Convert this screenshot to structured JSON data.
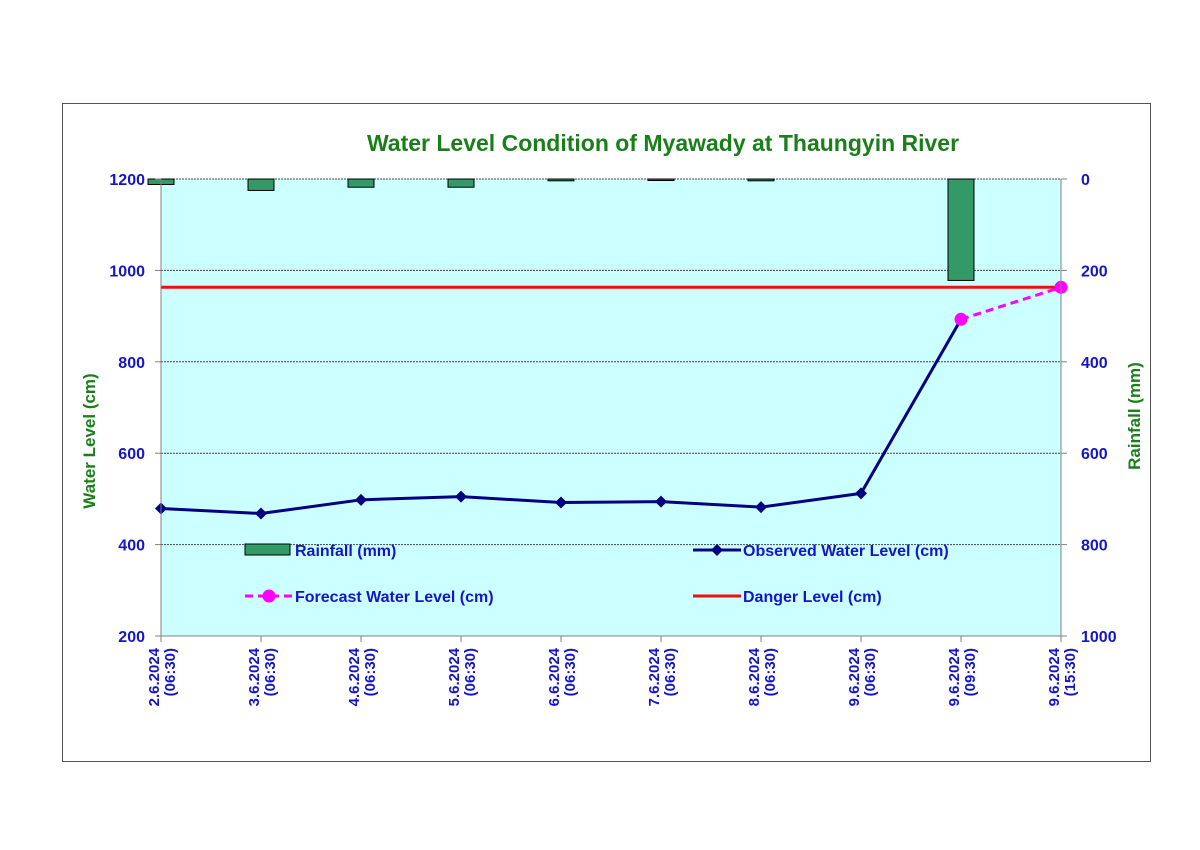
{
  "colors": {
    "title": "#1a7f1a",
    "axis_text": "#1515c8",
    "rain_axis_text": "#1a7f1a",
    "plot_bg": "#ccffff",
    "grid": "#444444",
    "rain_fill": "#339966",
    "observed": "#000080",
    "forecast": "#ff00ff",
    "danger": "#ee1111"
  },
  "chart_data": {
    "type": "line",
    "title": "Water Level Condition of  Myawady at Thaungyin River",
    "ylabel": "Water Level (cm)",
    "y2label": "Rainfall (mm)",
    "ylim": [
      200,
      1200
    ],
    "yticks": [
      200,
      400,
      600,
      800,
      1000,
      1200
    ],
    "y2lim": [
      0,
      1000
    ],
    "y2ticks": [
      0,
      200,
      400,
      600,
      800,
      1000
    ],
    "y2_inverted": true,
    "grid": true,
    "categories": [
      [
        "2.6.2024",
        "(06:30)"
      ],
      [
        "3.6.2024",
        "(06:30)"
      ],
      [
        "4.6.2024",
        "(06:30)"
      ],
      [
        "5.6.2024",
        "(06:30)"
      ],
      [
        "6.6.2024",
        "(06:30)"
      ],
      [
        "7.6.2024",
        "(06:30)"
      ],
      [
        "8.6.2024",
        "(06:30)"
      ],
      [
        "9.6.2024",
        "(06:30)"
      ],
      [
        "9.6.2024",
        "(09:30)"
      ],
      [
        "9.6.2024",
        "(15:30)"
      ]
    ],
    "series": [
      {
        "name": "Rainfall (mm)",
        "kind": "bar",
        "axis": "right",
        "values": [
          12,
          25,
          18,
          18,
          4,
          2,
          4,
          null,
          222,
          null
        ]
      },
      {
        "name": "Observed Water Level (cm)",
        "kind": "line",
        "axis": "left",
        "values": [
          479,
          468,
          498,
          505,
          492,
          494,
          482,
          512,
          null,
          null
        ]
      },
      {
        "name": "Forecast Water Level (cm)",
        "kind": "dashed-line",
        "axis": "left",
        "values": [
          null,
          null,
          null,
          null,
          null,
          null,
          null,
          null,
          893,
          963
        ]
      },
      {
        "name": "Danger Level (cm)",
        "kind": "constant-line",
        "axis": "left",
        "value": 963
      }
    ],
    "legend": [
      {
        "label": "Rainfall (mm)",
        "kind": "bar"
      },
      {
        "label": "Observed Water Level (cm)",
        "kind": "line"
      },
      {
        "label": "Forecast Water Level (cm)",
        "kind": "dashed-line"
      },
      {
        "label": "Danger Level (cm)",
        "kind": "constant-line"
      }
    ],
    "legend_placement": "inside-bottom"
  }
}
